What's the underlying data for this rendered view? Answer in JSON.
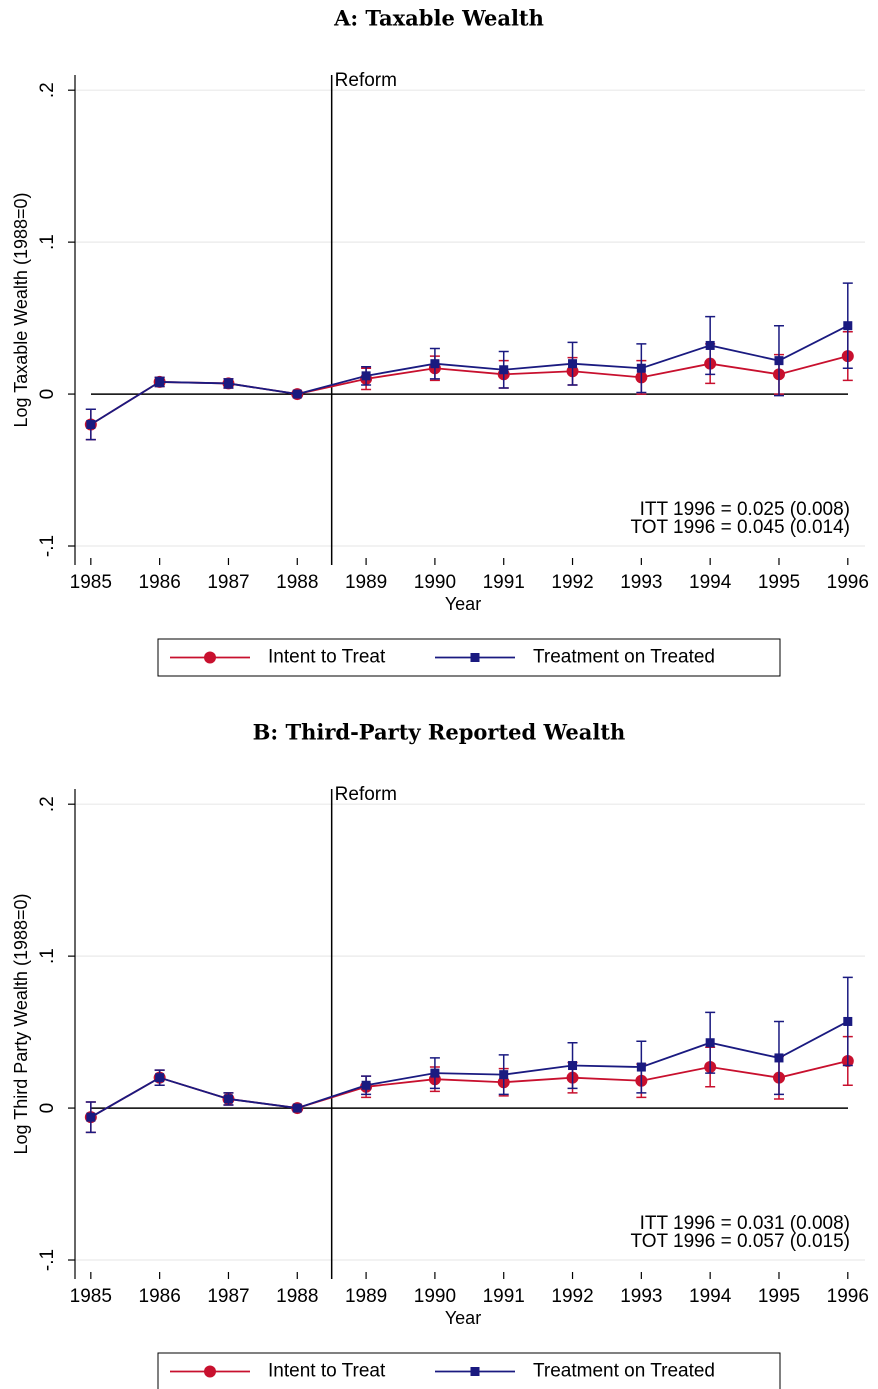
{
  "chart_data": [
    {
      "type": "line",
      "title": "A: Taxable Wealth",
      "xlabel": "Year",
      "ylabel": "Log Taxable Wealth (1988=0)",
      "x": [
        1985,
        1986,
        1987,
        1988,
        1989,
        1990,
        1991,
        1992,
        1993,
        1994,
        1995,
        1996
      ],
      "series": [
        {
          "name": "Intent to Treat",
          "color": "#c8102e",
          "marker": "circle",
          "values": [
            -0.02,
            0.008,
            0.007,
            0,
            0.01,
            0.017,
            0.013,
            0.015,
            0.011,
            0.02,
            0.013,
            0.025
          ],
          "errors": [
            0.01,
            0.003,
            0.003,
            0,
            0.007,
            0.008,
            0.009,
            0.009,
            0.011,
            0.013,
            0.013,
            0.016
          ]
        },
        {
          "name": "Treatment on Treated",
          "color": "#1a1a80",
          "marker": "square",
          "values": [
            -0.02,
            0.008,
            0.007,
            0,
            0.012,
            0.02,
            0.016,
            0.02,
            0.017,
            0.032,
            0.022,
            0.045
          ],
          "errors": [
            0.01,
            0.003,
            0.003,
            0,
            0.006,
            0.01,
            0.012,
            0.014,
            0.016,
            0.019,
            0.023,
            0.028
          ]
        }
      ],
      "xlim": [
        1984.77,
        1996.25
      ],
      "ylim": [
        -0.1125,
        0.21
      ],
      "xticks": [
        1985,
        1986,
        1987,
        1988,
        1989,
        1990,
        1991,
        1992,
        1993,
        1994,
        1995,
        1996
      ],
      "yticks": [
        {
          "value": -0.1,
          "label": "-.1"
        },
        0,
        {
          "value": 0.1,
          "label": ".1"
        },
        {
          "value": 0.2,
          "label": ".2"
        }
      ],
      "grid": true,
      "reform": {
        "x": 1988.5,
        "label": "Reform"
      },
      "annotations": [
        "ITT 1996 = 0.025 (0.008)",
        "TOT 1996 = 0.045 (0.014)"
      ]
    },
    {
      "type": "line",
      "title": "B: Third-Party Reported Wealth",
      "xlabel": "Year",
      "ylabel": "Log Third Party Wealth (1988=0)",
      "x": [
        1985,
        1986,
        1987,
        1988,
        1989,
        1990,
        1991,
        1992,
        1993,
        1994,
        1995,
        1996
      ],
      "series": [
        {
          "name": "Intent to Treat",
          "color": "#c8102e",
          "marker": "circle",
          "values": [
            -0.006,
            0.02,
            0.006,
            0,
            0.014,
            0.019,
            0.017,
            0.02,
            0.018,
            0.027,
            0.02,
            0.031
          ],
          "errors": [
            0.01,
            0.005,
            0.004,
            0,
            0.007,
            0.008,
            0.009,
            0.01,
            0.011,
            0.013,
            0.014,
            0.016
          ]
        },
        {
          "name": "Treatment on Treated",
          "color": "#1a1a80",
          "marker": "square",
          "values": [
            -0.006,
            0.02,
            0.006,
            0,
            0.015,
            0.023,
            0.022,
            0.028,
            0.027,
            0.043,
            0.033,
            0.057
          ],
          "errors": [
            0.01,
            0.005,
            0.004,
            0,
            0.006,
            0.01,
            0.013,
            0.015,
            0.017,
            0.02,
            0.024,
            0.029
          ]
        }
      ],
      "xlim": [
        1984.77,
        1996.25
      ],
      "ylim": [
        -0.1125,
        0.21
      ],
      "xticks": [
        1985,
        1986,
        1987,
        1988,
        1989,
        1990,
        1991,
        1992,
        1993,
        1994,
        1995,
        1996
      ],
      "yticks": [
        {
          "value": -0.1,
          "label": "-.1"
        },
        0,
        {
          "value": 0.1,
          "label": ".1"
        },
        {
          "value": 0.2,
          "label": ".2"
        }
      ],
      "grid": true,
      "reform": {
        "x": 1988.5,
        "label": "Reform"
      },
      "annotations": [
        "ITT 1996 = 0.031 (0.008)",
        "TOT 1996 = 0.057 (0.015)"
      ]
    }
  ]
}
